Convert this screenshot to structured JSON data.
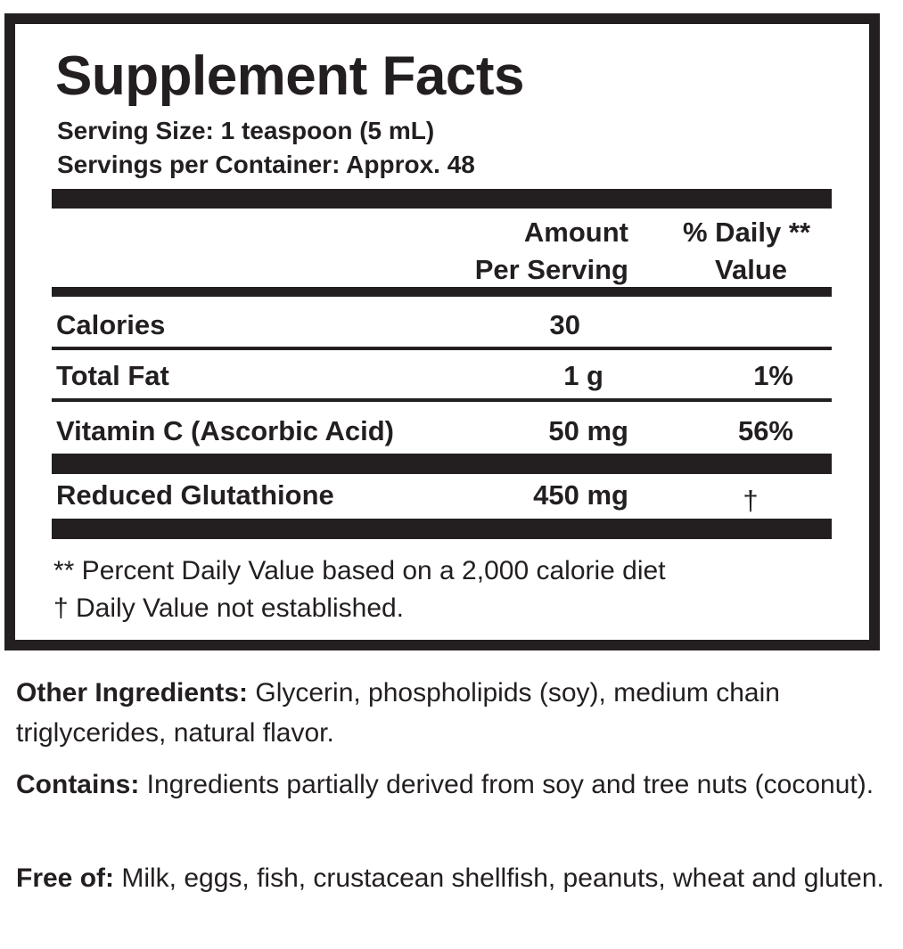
{
  "title": "Supplement Facts",
  "serving_size": "Serving Size: 1 teaspoon (5 mL)",
  "servings_per_container": "Servings per Container: Approx. 48",
  "header": {
    "amount_line1": "Amount",
    "amount_line2": "Per Serving",
    "dv_line1": "% Daily **",
    "dv_line2": "Value"
  },
  "rows": [
    {
      "name": "Calories",
      "amount": "30",
      "dv": ""
    },
    {
      "name": "Total Fat",
      "amount": "1 g",
      "dv": "1%"
    },
    {
      "name": "Vitamin C (Ascorbic Acid)",
      "amount": "50 mg",
      "dv": "56%"
    },
    {
      "name": "Reduced Glutathione",
      "amount": "450 mg",
      "dv": "†"
    }
  ],
  "footnotes": [
    "** Percent Daily Value based on a 2,000 calorie diet",
    "† Daily Value not established."
  ],
  "other": {
    "other_label": "Other Ingredients:",
    "other_text": " Glycerin, phospholipids (soy), medium chain triglycerides, natural flavor.",
    "contains_label": "Contains:",
    "contains_text": " Ingredients partially derived from soy and tree nuts (coconut).",
    "free_label": "Free of:",
    "free_text": " Milk, eggs, fish, crustacean shellfish, peanuts, wheat and gluten."
  }
}
